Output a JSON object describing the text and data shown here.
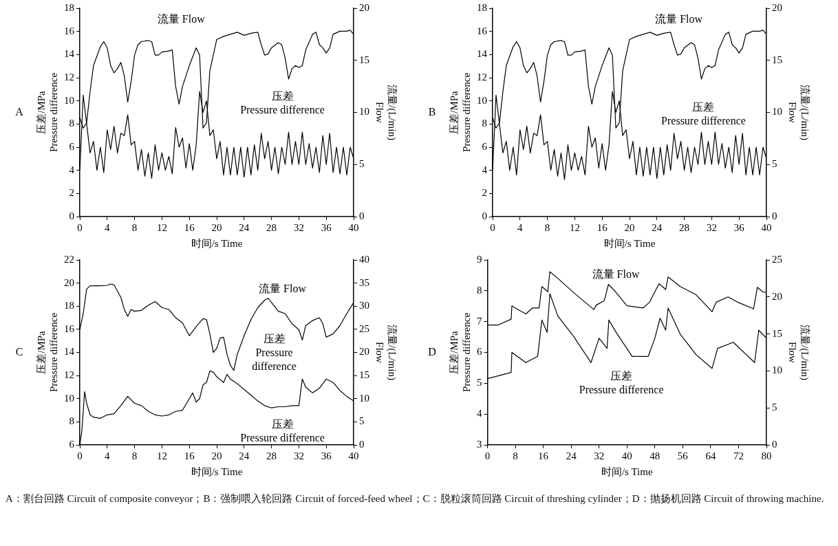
{
  "chart_data": [
    {
      "type": "line",
      "title": "A",
      "xlabel": "时间/s Time",
      "ylabel": "压差/MPa\nPressure difference",
      "y2label": "流量/(L/min)\nFlow",
      "xlim": [
        0,
        40
      ],
      "xticks": [
        0,
        4,
        8,
        12,
        16,
        20,
        24,
        28,
        32,
        36,
        40
      ],
      "ylim": [
        0,
        18
      ],
      "yticks": [
        0,
        2,
        4,
        6,
        8,
        10,
        12,
        14,
        16,
        18
      ],
      "y2lim": [
        0,
        20
      ],
      "y2ticks": [
        0,
        5,
        10,
        15,
        20
      ],
      "legend": false,
      "grid": false,
      "marker": "none",
      "series": [
        {
          "name": "流量 Flow",
          "color": "#000000",
          "axis": "y2",
          "x": [
            0,
            0.5,
            1,
            1.5,
            2,
            3,
            3.5,
            4,
            4.5,
            5,
            5.5,
            6,
            6.5,
            7,
            7.5,
            8,
            8.5,
            9,
            10,
            10.5,
            11,
            11.5,
            12,
            13,
            13.5,
            14,
            14.5,
            15,
            16,
            17,
            17.5,
            18,
            18.5,
            19,
            19.5,
            20,
            21,
            22,
            23,
            24,
            25,
            26,
            26.5,
            27,
            27.5,
            28,
            29,
            29.5,
            30,
            30.5,
            31,
            31.5,
            32,
            32.5,
            33,
            34,
            34.5,
            35,
            35.5,
            36,
            36.5,
            37,
            38,
            39,
            39.5,
            40
          ],
          "values": [
            9.5,
            8.5,
            9,
            12,
            14.5,
            16.3,
            16.8,
            16.2,
            14.5,
            13.8,
            14.2,
            14.8,
            13.5,
            11,
            13,
            15.5,
            16.5,
            16.8,
            16.9,
            16.8,
            15.5,
            15.5,
            15.8,
            15.9,
            16,
            12.5,
            10.8,
            12.5,
            14.5,
            16.2,
            15.5,
            8.5,
            9,
            14,
            15.5,
            17,
            17.3,
            17.5,
            17.7,
            17.4,
            17.6,
            17.7,
            16.5,
            15.5,
            15.6,
            16.2,
            16.7,
            16.5,
            15.2,
            13.2,
            14.2,
            14.5,
            14.3,
            14.5,
            16,
            17.5,
            17.7,
            16.5,
            16.2,
            15.7,
            16.2,
            17.5,
            17.8,
            17.8,
            17.9,
            17.5
          ]
        },
        {
          "name": "压差\nPressure difference",
          "color": "#000000",
          "x": [
            0,
            0.5,
            1,
            1.5,
            2,
            2.5,
            3,
            3.5,
            4,
            4.5,
            5,
            5.5,
            6,
            6.5,
            7,
            7.5,
            8,
            8.5,
            9,
            9.5,
            10,
            10.5,
            11,
            11.5,
            12,
            12.5,
            13,
            13.5,
            14,
            14.5,
            15,
            15.5,
            16,
            16.5,
            17,
            17.5,
            18,
            18.5,
            19,
            19.5,
            20,
            20.5,
            21,
            21.5,
            22,
            22.5,
            23,
            23.5,
            24,
            24.5,
            25,
            25.5,
            26,
            26.5,
            27,
            27.5,
            28,
            28.5,
            29,
            29.5,
            30,
            30.5,
            31,
            31.5,
            32,
            32.5,
            33,
            33.5,
            34,
            34.5,
            35,
            35.5,
            36,
            36.5,
            37,
            37.5,
            38,
            38.5,
            39,
            39.5,
            40
          ],
          "values": [
            4,
            10.5,
            8,
            5.5,
            6.5,
            4,
            6,
            3.8,
            7.5,
            5.8,
            7.8,
            5.5,
            7.2,
            7,
            8.8,
            6.2,
            6.5,
            4,
            5.8,
            3.5,
            5.5,
            3.3,
            6.2,
            4,
            5.5,
            4,
            5.2,
            3.7,
            7.7,
            6,
            6.8,
            4.2,
            6.3,
            4,
            6.2,
            10.8,
            9,
            10,
            7,
            7.5,
            5,
            6.5,
            3.6,
            6,
            3.6,
            6,
            3.6,
            6,
            3.4,
            6,
            3.6,
            6.2,
            4,
            7.2,
            5,
            6.5,
            4,
            6,
            3.7,
            6,
            4.5,
            7.3,
            4.5,
            6.5,
            4.5,
            7.3,
            4.5,
            6.3,
            4.2,
            6,
            3.8,
            7,
            4.5,
            7.2,
            3.8,
            6,
            3.7,
            6,
            3.6,
            6,
            5
          ]
        }
      ]
    },
    {
      "type": "line",
      "title": "B",
      "xlabel": "时间/s Time",
      "ylabel": "压差/MPa\nPressure difference",
      "y2label": "流量/(L/min)\nFlow",
      "xlim": [
        0,
        40
      ],
      "xticks": [
        0,
        4,
        8,
        12,
        16,
        20,
        24,
        28,
        32,
        36,
        40
      ],
      "ylim": [
        0,
        18
      ],
      "yticks": [
        0,
        2,
        4,
        6,
        8,
        10,
        12,
        14,
        16,
        18
      ],
      "y2lim": [
        0,
        20
      ],
      "y2ticks": [
        0,
        5,
        10,
        15,
        20
      ],
      "legend": false,
      "grid": false,
      "marker": "none",
      "series": [
        {
          "name": "流量 Flow",
          "color": "#000000",
          "axis": "y2",
          "x": [
            0,
            0.5,
            1,
            1.5,
            2,
            3,
            3.5,
            4,
            4.5,
            5,
            5.5,
            6,
            6.5,
            7,
            7.5,
            8,
            8.5,
            9,
            10,
            10.5,
            11,
            11.5,
            12,
            13,
            13.5,
            14,
            14.5,
            15,
            16,
            17,
            17.5,
            18,
            18.5,
            19,
            19.5,
            20,
            21,
            22,
            23,
            24,
            25,
            26,
            26.5,
            27,
            27.5,
            28,
            29,
            29.5,
            30,
            30.5,
            31,
            31.5,
            32,
            32.5,
            33,
            34,
            34.5,
            35,
            35.5,
            36,
            36.5,
            37,
            38,
            39,
            39.5,
            40
          ],
          "values": [
            9.5,
            8.5,
            9,
            12,
            14.5,
            16.3,
            16.8,
            16.2,
            14.5,
            13.8,
            14.2,
            14.8,
            13.5,
            11,
            13,
            15.5,
            16.5,
            16.8,
            16.9,
            16.8,
            15.5,
            15.5,
            15.8,
            15.9,
            16,
            12.5,
            10.8,
            12.5,
            14.5,
            16.2,
            15.5,
            8.5,
            9,
            14,
            15.5,
            17,
            17.3,
            17.5,
            17.7,
            17.4,
            17.6,
            17.7,
            16.5,
            15.5,
            15.6,
            16.2,
            16.7,
            16.5,
            15.2,
            13.2,
            14.2,
            14.5,
            14.3,
            14.5,
            16,
            17.5,
            17.7,
            16.5,
            16.2,
            15.7,
            16.2,
            17.5,
            17.8,
            17.8,
            17.9,
            17.5
          ]
        },
        {
          "name": "压差\nPressure difference",
          "color": "#000000",
          "x": [
            0,
            0.5,
            1,
            1.5,
            2,
            2.5,
            3,
            3.5,
            4,
            4.5,
            5,
            5.5,
            6,
            6.5,
            7,
            7.5,
            8,
            8.5,
            9,
            9.5,
            10,
            10.5,
            11,
            11.5,
            12,
            12.5,
            13,
            13.5,
            14,
            14.5,
            15,
            15.5,
            16,
            16.5,
            17,
            17.5,
            18,
            18.5,
            19,
            19.5,
            20,
            20.5,
            21,
            21.5,
            22,
            22.5,
            23,
            23.5,
            24,
            24.5,
            25,
            25.5,
            26,
            26.5,
            27,
            27.5,
            28,
            28.5,
            29,
            29.5,
            30,
            30.5,
            31,
            31.5,
            32,
            32.5,
            33,
            33.5,
            34,
            34.5,
            35,
            35.5,
            36,
            36.5,
            37,
            37.5,
            38,
            38.5,
            39,
            39.5,
            40
          ],
          "values": [
            4,
            10.5,
            8,
            5.5,
            6.5,
            4,
            6,
            3.6,
            7.5,
            5.8,
            7.8,
            5.5,
            7.2,
            7,
            8.8,
            6.2,
            6.5,
            4,
            5.8,
            3.5,
            5.5,
            3.2,
            6.2,
            4,
            5.5,
            4,
            5.2,
            3.6,
            7.8,
            6,
            6.8,
            4.2,
            6.3,
            4,
            6.2,
            10.8,
            9,
            10,
            7,
            7.5,
            5,
            6.5,
            3.6,
            6,
            3.5,
            6,
            3.6,
            6,
            3.3,
            6,
            3.6,
            6.2,
            4,
            7.2,
            5,
            6.5,
            4,
            6,
            3.8,
            6,
            4.5,
            7.3,
            4.5,
            6.5,
            4.5,
            7.3,
            4.5,
            6.3,
            4.2,
            6,
            3.8,
            7,
            4.5,
            7.2,
            3.6,
            6,
            3.6,
            6,
            3.6,
            6,
            5
          ]
        }
      ]
    },
    {
      "type": "line",
      "title": "C",
      "xlabel": "时间/s Time",
      "ylabel": "压差/MPa\nPressure difference",
      "y2label": "流量/(L/min)\nFlow",
      "xlim": [
        0,
        40
      ],
      "xticks": [
        0,
        4,
        8,
        12,
        16,
        20,
        24,
        28,
        32,
        36,
        40
      ],
      "ylim": [
        6,
        22
      ],
      "yticks": [
        6,
        8,
        10,
        12,
        14,
        16,
        18,
        20,
        22
      ],
      "y2lim": [
        0,
        40
      ],
      "y2ticks": [
        0,
        5,
        10,
        15,
        20,
        25,
        30,
        35,
        40
      ],
      "legend": false,
      "grid": false,
      "marker": "none",
      "annotations": [
        "压差\nPressure\ndifference"
      ],
      "series": [
        {
          "name": "流量 Flow",
          "color": "#000000",
          "axis": "y2",
          "x": [
            0,
            0.5,
            1,
            1.5,
            2,
            3,
            4,
            4.5,
            5,
            6,
            6.5,
            7,
            7.5,
            8,
            9,
            10,
            11,
            12,
            13,
            14,
            15,
            16,
            17,
            18,
            18.5,
            19,
            19.5,
            20,
            20.5,
            21,
            21.5,
            22,
            22.5,
            23,
            24,
            25,
            26,
            27,
            27.5,
            28,
            29,
            30,
            31,
            32,
            32.5,
            33,
            34,
            35,
            35.5,
            36,
            37,
            38,
            39,
            40
          ],
          "values": [
            24.9,
            28.4,
            33.7,
            34.4,
            34.4,
            34.4,
            34.5,
            34.8,
            34.6,
            31.9,
            29.3,
            27.8,
            29.3,
            28.9,
            29.1,
            30.2,
            31,
            29.7,
            29.3,
            27.5,
            26.4,
            23.6,
            25.6,
            27.3,
            27.1,
            24,
            20,
            20.9,
            23.1,
            23.3,
            19.6,
            17.2,
            16.1,
            19.6,
            23.6,
            27.1,
            29.7,
            31.3,
            31.7,
            30.8,
            28.9,
            28.4,
            26.2,
            24.9,
            22.7,
            25.8,
            26.9,
            27.5,
            26.2,
            23.3,
            24,
            25.8,
            28.4,
            30.8
          ]
        },
        {
          "name": "压差\nPressure difference",
          "color": "#000000",
          "x": [
            0,
            0.3,
            0.7,
            1,
            1.5,
            2,
            3,
            4,
            5,
            6,
            7,
            8,
            9,
            10,
            11,
            12,
            13,
            14,
            15,
            16,
            16.5,
            17,
            17.5,
            18,
            18.5,
            19,
            19.5,
            20,
            21,
            21.5,
            22,
            23,
            24,
            25,
            26,
            27,
            28,
            29,
            30,
            31,
            32,
            32.5,
            33,
            34,
            35,
            36,
            37,
            38,
            39,
            40
          ],
          "values": [
            6,
            7.2,
            10.6,
            9.6,
            8.6,
            8.4,
            8.3,
            8.6,
            8.7,
            9.4,
            10.2,
            9.6,
            9.4,
            8.9,
            8.6,
            8.5,
            8.6,
            8.9,
            9,
            10,
            10.5,
            9.7,
            10,
            11.2,
            11.4,
            12.4,
            12.3,
            11.9,
            11.4,
            12.1,
            11.7,
            11.3,
            10.8,
            10.3,
            9.8,
            9.4,
            9.2,
            9.3,
            9.3,
            9.4,
            9.4,
            11.7,
            11,
            10.5,
            10.9,
            11.7,
            11.4,
            10.7,
            10.2,
            9.8
          ]
        }
      ]
    },
    {
      "type": "line",
      "title": "D",
      "xlabel": "时间/s Time",
      "ylabel": "压差/MPa\nPressure difference",
      "y2label": "流量/(L/min)\nFlow",
      "xlim": [
        0,
        80
      ],
      "xticks": [
        0,
        8,
        16,
        24,
        32,
        40,
        48,
        56,
        64,
        72,
        80
      ],
      "ylim": [
        3,
        9
      ],
      "yticks": [
        3,
        4,
        5,
        6,
        7,
        8,
        9
      ],
      "y2lim": [
        0,
        25
      ],
      "y2ticks": [
        0,
        5,
        10,
        15,
        20,
        25
      ],
      "legend": false,
      "grid": false,
      "marker": "none",
      "annotations": [
        "A：割台回路 Circuit of composite conveyor；B：强制喂入轮回路 Circuit of forced-feed wheel；C：脱粒滚筒回路 Circuit of threshing cylinder；D：抛扬机回路 Circuit of throwing machine."
      ],
      "series": [
        {
          "name": "流量 Flow",
          "color": "#000000",
          "axis": "y2",
          "x": [
            0,
            3,
            6.8,
            7,
            8.7,
            11,
            12.9,
            14.8,
            15.6,
            17.3,
            17.9,
            20.2,
            24.7,
            30.5,
            31.2,
            33.5,
            34.7,
            36.9,
            40,
            44.6,
            46.5,
            49.2,
            51.1,
            51.8,
            55.3,
            59.8,
            64.4,
            65.6,
            69,
            71.7,
            76.3,
            77.4,
            78.9,
            80
          ],
          "values": [
            16.2,
            16.2,
            17,
            18.8,
            18.3,
            17.7,
            18.5,
            18.5,
            21.4,
            20.7,
            23.4,
            22.5,
            20.6,
            18.3,
            18.9,
            19.5,
            21.7,
            20.6,
            18.8,
            18.5,
            19.3,
            21.8,
            21,
            22.7,
            21.4,
            20.3,
            18,
            19.3,
            20,
            19.3,
            18.4,
            21.3,
            20.7,
            20.6
          ]
        },
        {
          "name": "压差\nPressure difference",
          "color": "#000000",
          "x": [
            0,
            6.8,
            7,
            11,
            14.4,
            15.6,
            17.1,
            17.9,
            20.2,
            24.7,
            29.7,
            32,
            34.3,
            34.8,
            36.9,
            41.5,
            46.1,
            48,
            49.5,
            51.1,
            51.8,
            55.3,
            59.8,
            64.4,
            66,
            70.5,
            76.6,
            77.8,
            80
          ],
          "values": [
            5.15,
            5.35,
            6,
            5.67,
            5.87,
            7.05,
            6.65,
            7.9,
            7.18,
            6.52,
            5.67,
            6.46,
            6.13,
            7.05,
            6.65,
            5.87,
            5.87,
            6.46,
            7.11,
            6.72,
            7.44,
            6.59,
            5.93,
            5.48,
            6.13,
            6.33,
            5.67,
            6.72,
            6.46
          ]
        }
      ]
    }
  ]
}
